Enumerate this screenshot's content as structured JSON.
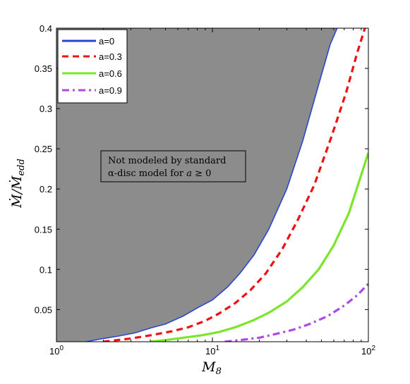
{
  "chart_data": {
    "type": "line",
    "xscale": "log",
    "xlim": [
      1,
      100
    ],
    "ylim": [
      0.01,
      0.4
    ],
    "xlabel": "M8",
    "ylabel": "Ṁ/Ṁedd",
    "x_ticks": [
      {
        "value": 1,
        "base": "10",
        "exp": "0"
      },
      {
        "value": 10,
        "base": "10",
        "exp": "1"
      },
      {
        "value": 100,
        "base": "10",
        "exp": "2"
      }
    ],
    "y_ticks": [
      "0.05",
      "0.1",
      "0.15",
      "0.2",
      "0.25",
      "0.3",
      "0.35",
      "0.4"
    ],
    "y_tick_values": [
      0.05,
      0.1,
      0.15,
      0.2,
      0.25,
      0.3,
      0.35,
      0.4
    ],
    "grid": false,
    "legend_position": "top-left",
    "shaded_region": {
      "color": "#8c8c8c",
      "description_bound_to_series": "a=0",
      "label": "Not modeled by standard α-disc model for a ≥ 0"
    },
    "series": [
      {
        "name": "a=0",
        "color": "#2a46cc",
        "style": "solid",
        "x": [
          1.55,
          2.0,
          2.5,
          3.2,
          4.0,
          5.0,
          6.5,
          8.0,
          10.0,
          12.5,
          15.0,
          18.5,
          23.0,
          30.0,
          38.0,
          48.0,
          57.0,
          63.0
        ],
        "y": [
          0.01,
          0.014,
          0.017,
          0.021,
          0.027,
          0.032,
          0.042,
          0.052,
          0.062,
          0.078,
          0.095,
          0.118,
          0.15,
          0.2,
          0.26,
          0.33,
          0.38,
          0.4
        ]
      },
      {
        "name": "a=0.3",
        "color": "#ee1111",
        "style": "dashed",
        "x": [
          2.0,
          3.0,
          4.0,
          5.5,
          7.0,
          9.0,
          11.0,
          14.0,
          17.5,
          22.0,
          28.0,
          35.0,
          45.0,
          58.0,
          72.0,
          85.0,
          95.0
        ],
        "y": [
          0.01,
          0.014,
          0.018,
          0.023,
          0.028,
          0.036,
          0.045,
          0.058,
          0.074,
          0.095,
          0.125,
          0.16,
          0.205,
          0.265,
          0.32,
          0.37,
          0.4
        ]
      },
      {
        "name": "a=0.6",
        "color": "#7be52a",
        "style": "solid",
        "x": [
          4.0,
          5.0,
          6.5,
          8.5,
          11.0,
          14.0,
          18.0,
          23.0,
          30.0,
          38.0,
          48.0,
          60.0,
          75.0,
          100.0
        ],
        "y": [
          0.01,
          0.012,
          0.015,
          0.018,
          0.022,
          0.028,
          0.036,
          0.046,
          0.06,
          0.078,
          0.1,
          0.13,
          0.17,
          0.245
        ]
      },
      {
        "name": "a=0.9",
        "color": "#b048e8",
        "style": "dashdot",
        "x": [
          12.0,
          15.0,
          20.0,
          26.0,
          33.0,
          42.0,
          55.0,
          70.0,
          85.0,
          100.0
        ],
        "y": [
          0.01,
          0.012,
          0.015,
          0.02,
          0.025,
          0.032,
          0.042,
          0.055,
          0.068,
          0.082
        ]
      }
    ]
  },
  "legend": {
    "entries": [
      "a=0",
      "a=0.3",
      "a=0.6",
      "a=0.9"
    ]
  },
  "annotation": {
    "line1": "Not modeled by standard",
    "line2_prefix": "α-disc model for ",
    "line2_var": "a",
    "line2_suffix": " ≥ 0"
  }
}
